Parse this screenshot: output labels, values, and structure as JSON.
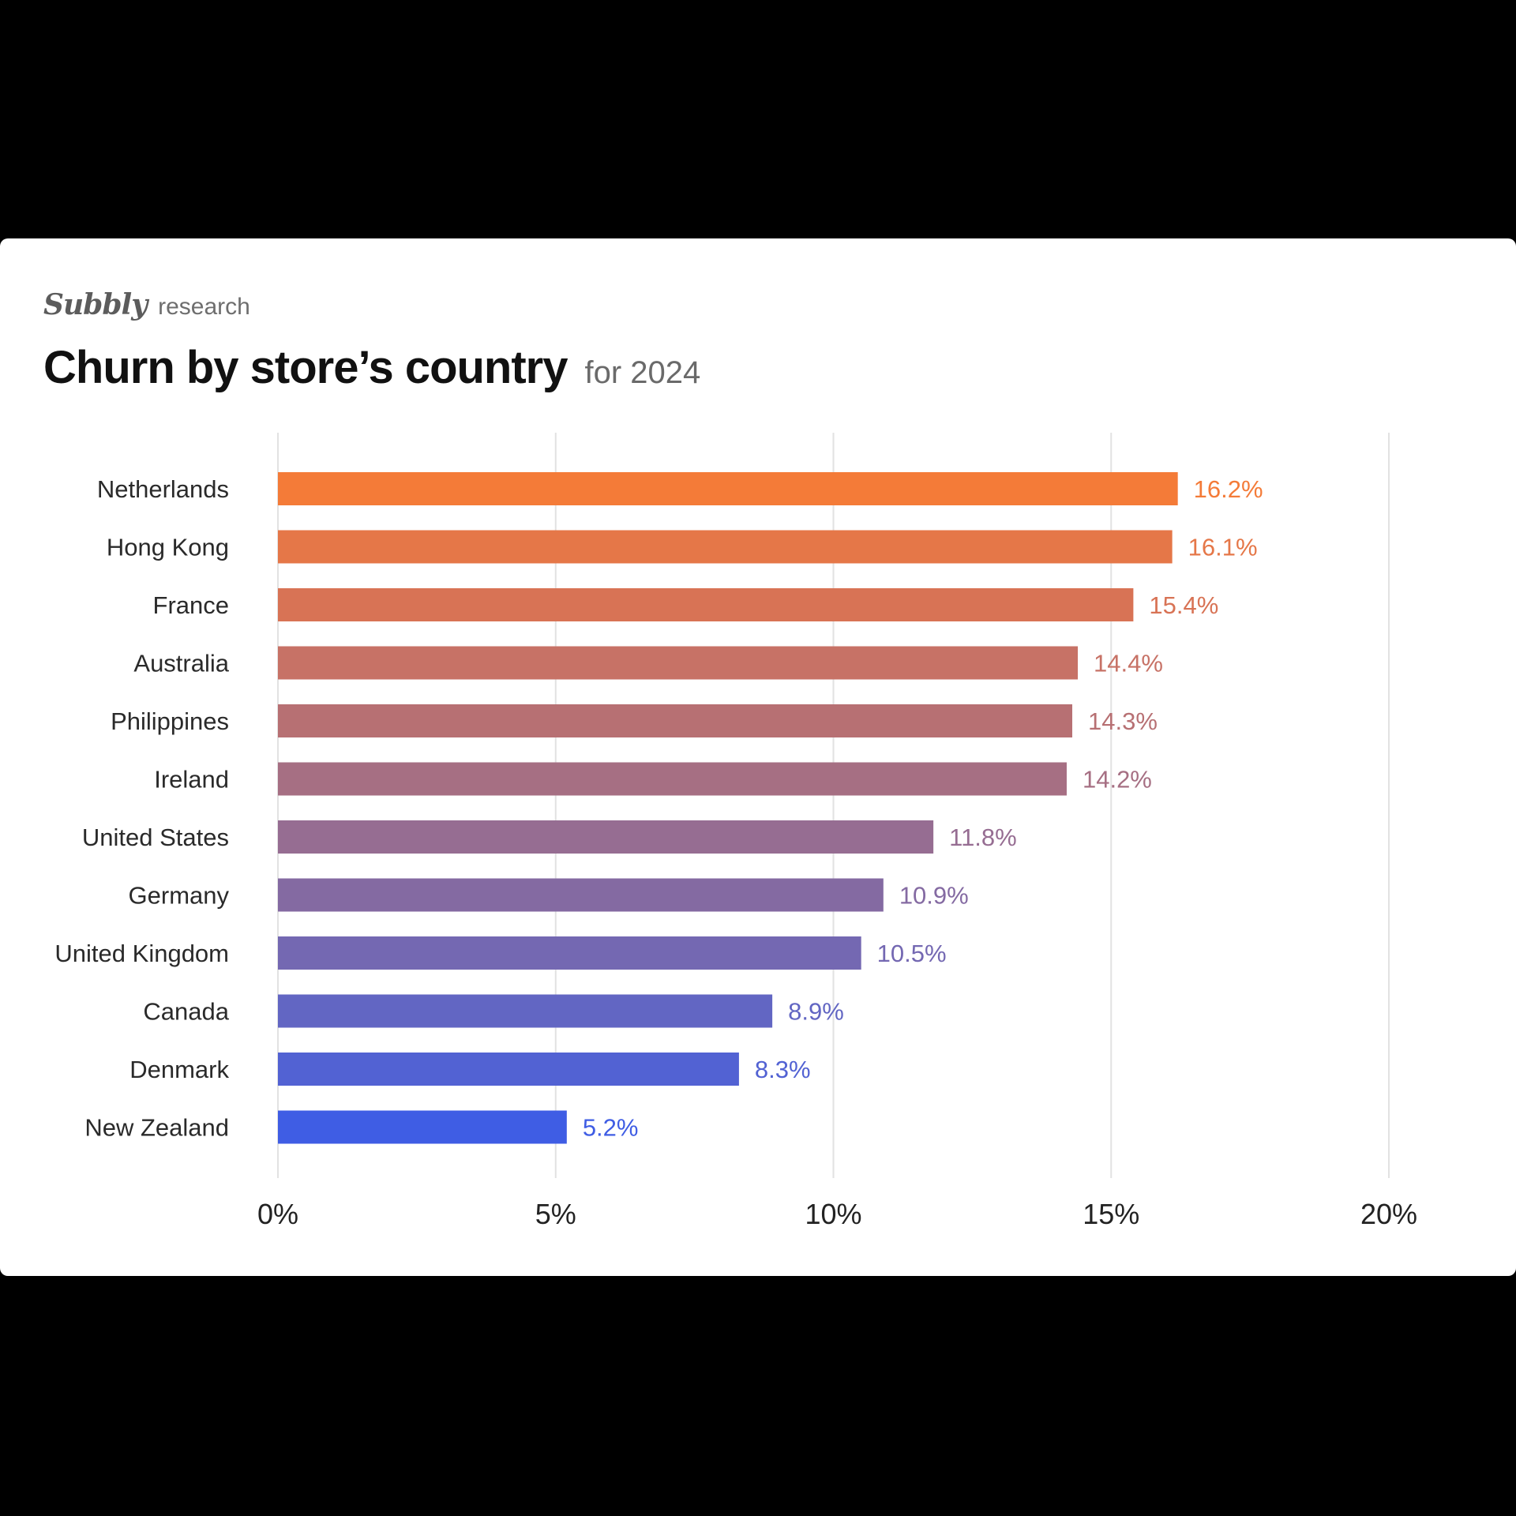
{
  "brand": {
    "logo_text": "Subbly",
    "subtitle": "research"
  },
  "header": {
    "title": "Churn by store’s country",
    "subtitle": "for 2024"
  },
  "chart_data": {
    "type": "bar",
    "orientation": "horizontal",
    "title": "Churn by store’s country",
    "subtitle": "for 2024",
    "categories": [
      "Netherlands",
      "Hong Kong",
      "France",
      "Australia",
      "Philippines",
      "Ireland",
      "United States",
      "Germany",
      "United Kingdom",
      "Canada",
      "Denmark",
      "New Zealand"
    ],
    "values": [
      16.2,
      16.1,
      15.4,
      14.4,
      14.3,
      14.2,
      11.8,
      10.9,
      10.5,
      8.9,
      8.3,
      5.2
    ],
    "value_labels": [
      "16.2%",
      "16.1%",
      "15.4%",
      "14.4%",
      "14.3%",
      "14.2%",
      "11.8%",
      "10.9%",
      "10.5%",
      "8.9%",
      "8.3%",
      "5.2%"
    ],
    "xlim": [
      0,
      20
    ],
    "x_ticks": [
      0,
      5,
      10,
      15,
      20
    ],
    "x_tick_labels": [
      "0%",
      "5%",
      "10%",
      "15%",
      "20%"
    ],
    "xlabel": "",
    "ylabel": "",
    "grid": true,
    "legend": "none",
    "bar_colors": [
      "#f47b38",
      "#e57748",
      "#d87355",
      "#c77266",
      "#b77073",
      "#a66f83",
      "#966d92",
      "#846aa2",
      "#7468b2",
      "#6266c3",
      "#5262d3",
      "#3f5de4"
    ]
  }
}
